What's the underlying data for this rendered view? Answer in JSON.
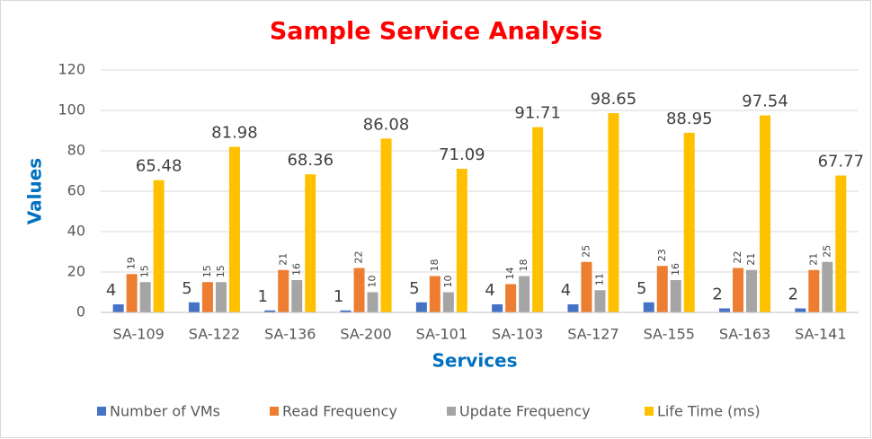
{
  "chart_data": {
    "type": "bar",
    "title": "Sample Service Analysis",
    "x_label": "Services",
    "y_label": "Values",
    "categories": [
      "SA-109",
      "SA-122",
      "SA-136",
      "SA-200",
      "SA-101",
      "SA-103",
      "SA-127",
      "SA-155",
      "SA-163",
      "SA-141"
    ],
    "series": [
      {
        "name": "Number of VMs",
        "color": "#4472c4",
        "values": [
          4,
          5,
          1,
          1,
          5,
          4,
          4,
          5,
          2,
          2
        ]
      },
      {
        "name": "Read Frequency",
        "color": "#ed7d31",
        "values": [
          19,
          15,
          21,
          22,
          18,
          14,
          25,
          23,
          22,
          21
        ]
      },
      {
        "name": "Update Frequency",
        "color": "#a5a5a5",
        "values": [
          15,
          15,
          16,
          10,
          10,
          18,
          11,
          16,
          21,
          25
        ]
      },
      {
        "name": "Life Time (ms)",
        "color": "#ffc000",
        "values": [
          65.48,
          81.98,
          68.36,
          86.08,
          71.09,
          91.71,
          98.65,
          88.95,
          97.54,
          67.77
        ]
      }
    ],
    "ylim": [
      0,
      120
    ],
    "yticks": [
      0,
      20,
      40,
      60,
      80,
      100,
      120
    ],
    "grid": true,
    "legend": "bottom"
  }
}
